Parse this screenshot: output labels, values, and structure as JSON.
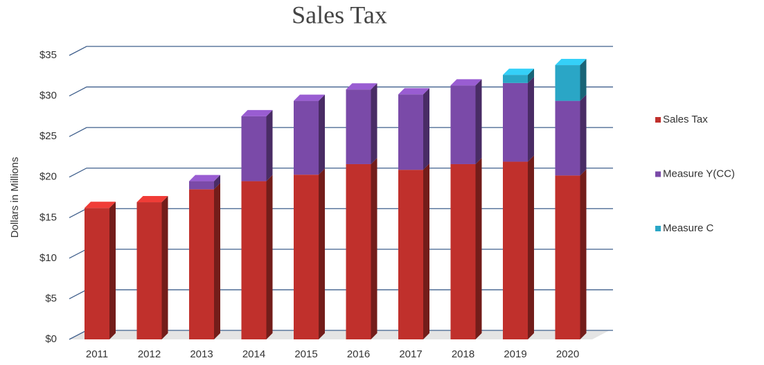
{
  "chart_data": {
    "type": "bar3d_stacked",
    "title": "Sales Tax",
    "y_label": "Dollars in Millions",
    "categories": [
      "2011",
      "2012",
      "2013",
      "2014",
      "2015",
      "2016",
      "2017",
      "2018",
      "2019",
      "2020"
    ],
    "series": [
      {
        "name": "Sales Tax",
        "color": "#c0302c",
        "values": [
          16.2,
          16.9,
          18.5,
          19.5,
          20.3,
          21.6,
          20.9,
          21.6,
          21.9,
          20.2
        ]
      },
      {
        "name": "Measure Y(CC)",
        "color": "#7a4aa8",
        "values": [
          null,
          null,
          1.0,
          8.0,
          9.1,
          9.2,
          9.3,
          9.7,
          9.7,
          9.2
        ]
      },
      {
        "name": "Measure C",
        "color": "#2aa6c6",
        "values": [
          null,
          null,
          null,
          null,
          null,
          null,
          null,
          null,
          1.0,
          4.4
        ]
      }
    ],
    "ylim": [
      0,
      35
    ],
    "yticks": [
      {
        "value": 0,
        "label": "$0"
      },
      {
        "value": 5,
        "label": "$5"
      },
      {
        "value": 10,
        "label": "$10"
      },
      {
        "value": 15,
        "label": "$15"
      },
      {
        "value": 20,
        "label": "$20"
      },
      {
        "value": 25,
        "label": "$25"
      },
      {
        "value": 30,
        "label": "$30"
      },
      {
        "value": 35,
        "label": "$35"
      }
    ],
    "grid": true,
    "legend": "right"
  }
}
